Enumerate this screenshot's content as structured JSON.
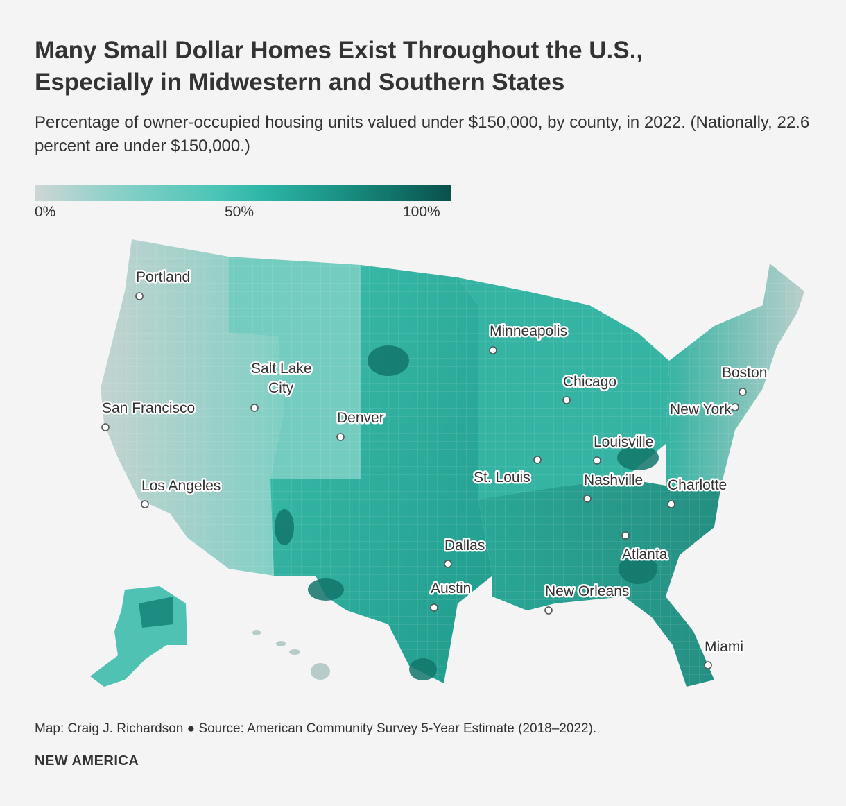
{
  "title_line1": "Many Small Dollar Homes Exist Throughout the U.S.,",
  "title_line2": "Especially in Midwestern and Southern States",
  "subtitle": "Percentage of owner-occupied housing units valued under $150,000, by county, in 2022. (Nationally, 22.6 percent are under $150,000.)",
  "legend": {
    "min_label": "0%",
    "mid_label": "50%",
    "max_label": "100%",
    "colors": [
      "#cfd6d5",
      "#8fd1c9",
      "#4fc6b8",
      "#2db5a6",
      "#1b9486",
      "#0f6f66",
      "#0a504b"
    ]
  },
  "cities": {
    "portland": "Portland",
    "minneapolis": "Minneapolis",
    "salt_lake_city_1": "Salt Lake",
    "salt_lake_city_2": "City",
    "boston": "Boston",
    "chicago": "Chicago",
    "san_francisco": "San Francisco",
    "denver": "Denver",
    "new_york": "New York",
    "louisville": "Louisville",
    "st_louis": "St. Louis",
    "nashville": "Nashville",
    "charlotte": "Charlotte",
    "los_angeles": "Los Angeles",
    "dallas": "Dallas",
    "atlanta": "Atlanta",
    "austin": "Austin",
    "new_orleans": "New Orleans",
    "miami": "Miami"
  },
  "source": "Map: Craig J. Richardson ● Source: American Community Survey 5-Year Estimate (2018–2022).",
  "brand": "NEW AMERICA"
}
